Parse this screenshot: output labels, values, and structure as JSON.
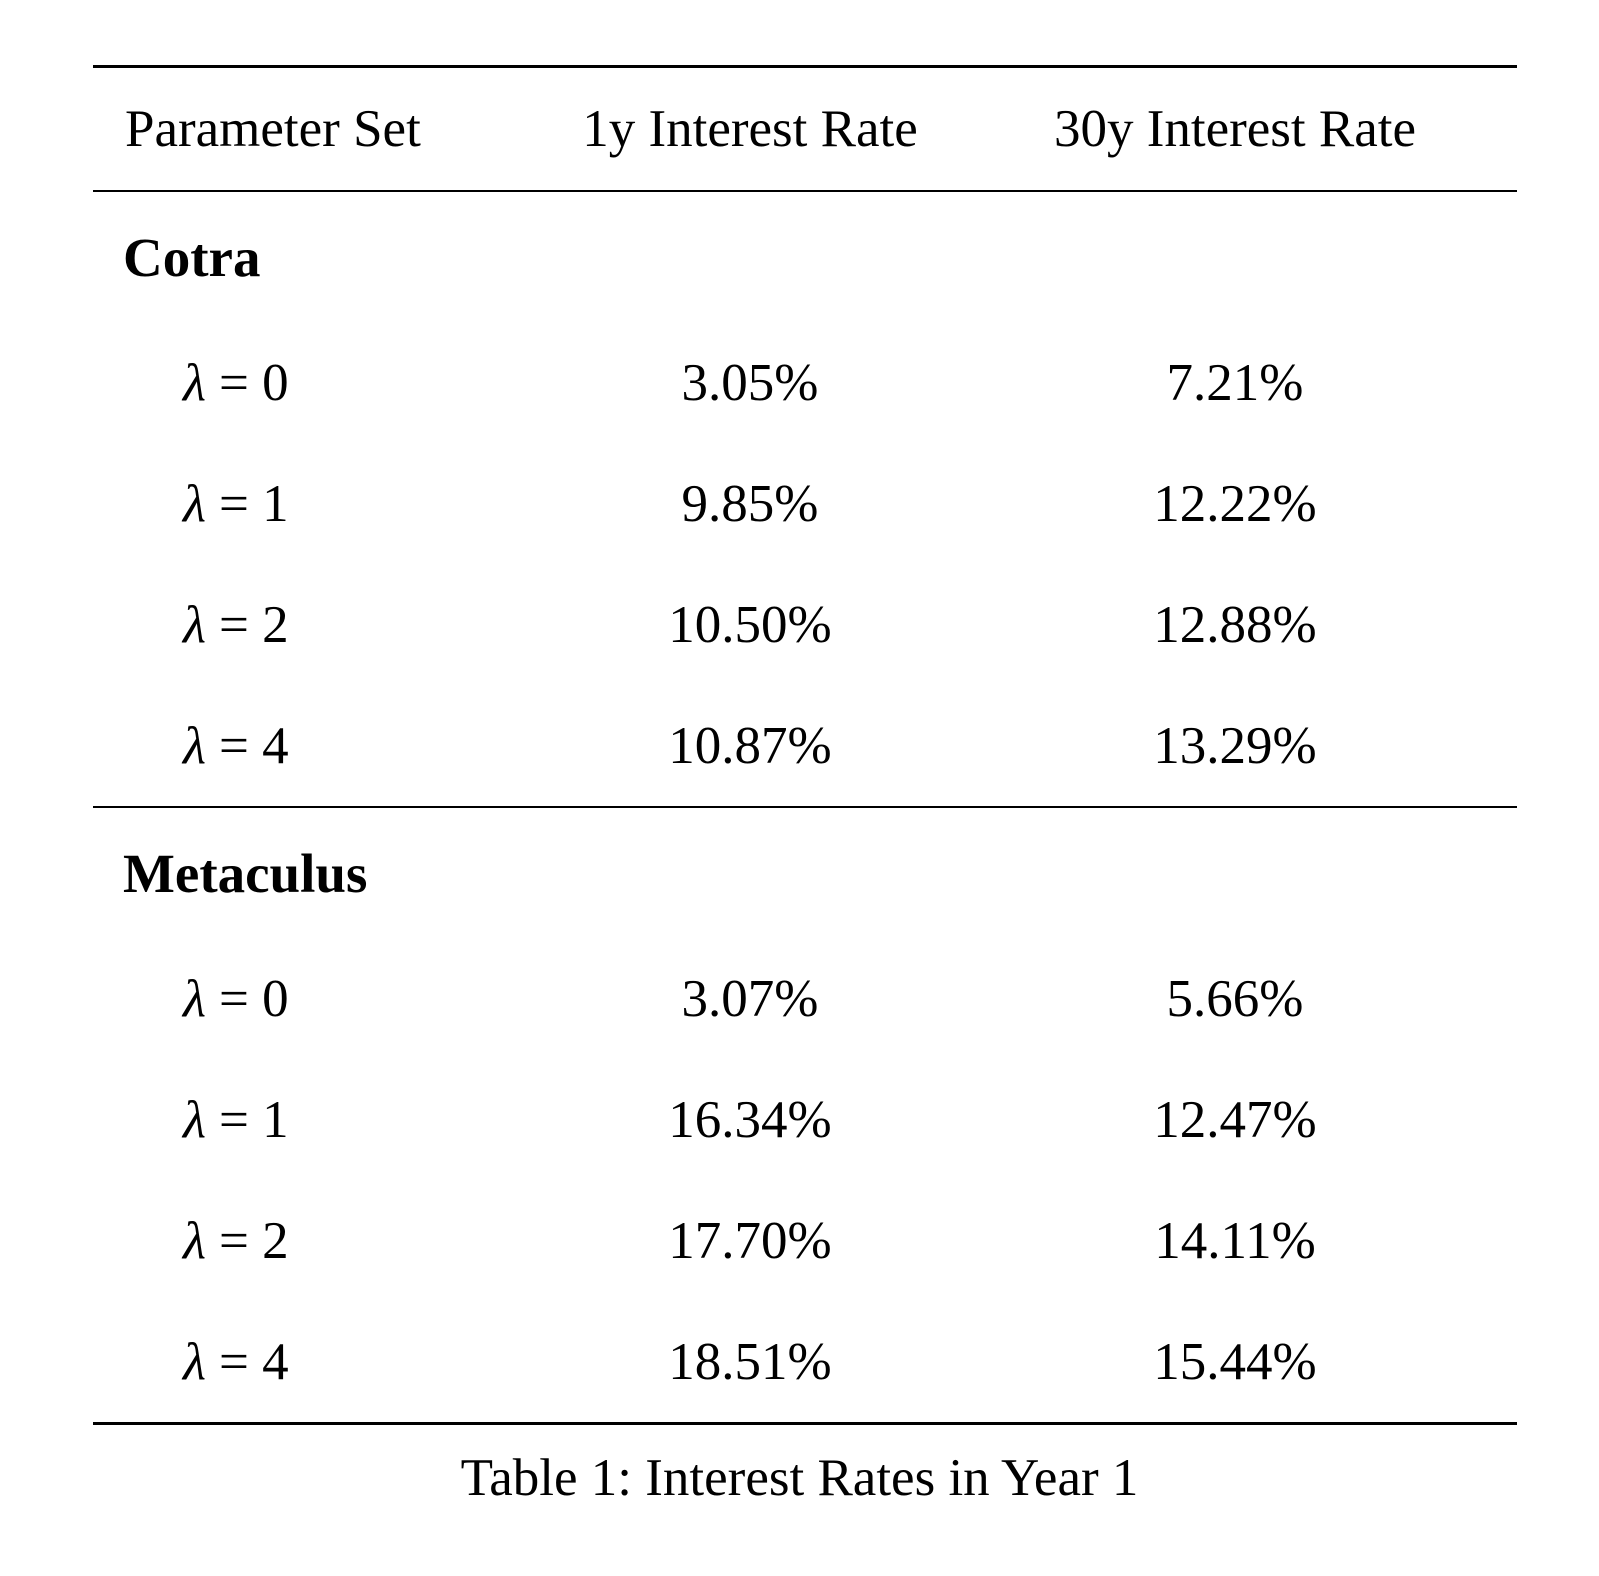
{
  "page": {
    "background": "#ffffff",
    "text_color": "#000000",
    "rule_color": "#000000"
  },
  "table": {
    "columns": [
      "Parameter Set",
      "1y Interest Rate",
      "30y Interest Rate"
    ],
    "sections": [
      {
        "name": "Cotra",
        "rows": [
          {
            "param_symbol": "λ",
            "param_rest": "= 0",
            "rate_1y": "3.05%",
            "rate_30y": "7.21%"
          },
          {
            "param_symbol": "λ",
            "param_rest": "= 1",
            "rate_1y": "9.85%",
            "rate_30y": "12.22%"
          },
          {
            "param_symbol": "λ",
            "param_rest": "= 2",
            "rate_1y": "10.50%",
            "rate_30y": "12.88%"
          },
          {
            "param_symbol": "λ",
            "param_rest": "= 4",
            "rate_1y": "10.87%",
            "rate_30y": "13.29%"
          }
        ]
      },
      {
        "name": "Metaculus",
        "rows": [
          {
            "param_symbol": "λ",
            "param_rest": "= 0",
            "rate_1y": "3.07%",
            "rate_30y": "5.66%"
          },
          {
            "param_symbol": "λ",
            "param_rest": "= 1",
            "rate_1y": "16.34%",
            "rate_30y": "12.47%"
          },
          {
            "param_symbol": "λ",
            "param_rest": "= 2",
            "rate_1y": "17.70%",
            "rate_30y": "14.11%"
          },
          {
            "param_symbol": "λ",
            "param_rest": "= 4",
            "rate_1y": "18.51%",
            "rate_30y": "15.44%"
          }
        ]
      }
    ]
  },
  "caption": "Table 1: Interest Rates in Year 1"
}
